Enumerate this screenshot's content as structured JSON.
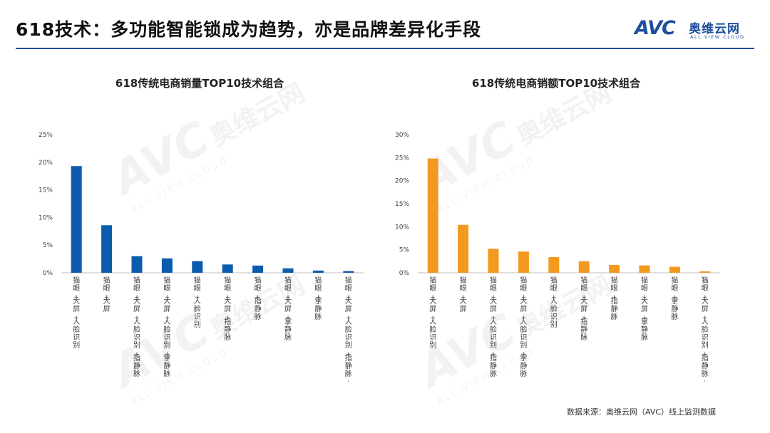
{
  "header": {
    "title": "618技术：多功能智能锁成为趋势，亦是品牌差异化手段",
    "logo_mark": "AVC",
    "logo_cn": "奥维云网",
    "logo_en": "ALL VIEW CLOUD",
    "rule_color": "#1f4e9c"
  },
  "watermark": {
    "mark": "AVC",
    "cn": "奥维云网",
    "en": "ALL VIEW CLOUD"
  },
  "footer": {
    "source": "数据来源：奥维云网（AVC）线上监测数据"
  },
  "colors": {
    "volume": "#0b5cad",
    "revenue": "#f3991f",
    "axis": "#bfbfbf",
    "text": "#404040",
    "brand": "#1f4e9c"
  },
  "chart_data": [
    {
      "type": "bar",
      "title": "618传统电商销量TOP10技术组合",
      "categories": [
        "猫眼+大屏+人脸识别",
        "猫眼+大屏",
        "猫眼+大屏+人脸识别+指静脉",
        "猫眼+大屏+人脸识别+掌静脉",
        "猫眼+人脸识别",
        "猫眼+大屏+指静脉",
        "猫眼+指静脉",
        "猫眼+大屏+掌静脉",
        "猫眼+掌静脉",
        "猫眼+大屏+人脸识别+指静脉+掌静脉"
      ],
      "values": [
        19.3,
        8.6,
        3.0,
        2.6,
        2.1,
        1.5,
        1.3,
        0.8,
        0.4,
        0.3
      ],
      "yticks": [
        "0%",
        "5%",
        "10%",
        "15%",
        "20%",
        "25%"
      ],
      "ylim": [
        0,
        25
      ],
      "color": "#0b5cad"
    },
    {
      "type": "bar",
      "title": "618传统电商销额TOP10技术组合",
      "categories": [
        "猫眼+大屏+人脸识别",
        "猫眼+大屏",
        "猫眼+大屏+人脸识别+指静脉",
        "猫眼+大屏+人脸识别+掌静脉",
        "猫眼+人脸识别",
        "猫眼+大屏+指静脉",
        "猫眼+指静脉",
        "猫眼+大屏+掌静脉",
        "猫眼+掌静脉",
        "猫眼+大屏+人脸识别+指静脉+掌静脉"
      ],
      "values": [
        24.8,
        10.4,
        5.2,
        4.6,
        3.4,
        2.5,
        1.7,
        1.6,
        1.3,
        0.3
      ],
      "yticks": [
        "0%",
        "5%",
        "10%",
        "15%",
        "20%",
        "25%",
        "30%"
      ],
      "ylim": [
        0,
        30
      ],
      "color": "#f3991f"
    }
  ]
}
